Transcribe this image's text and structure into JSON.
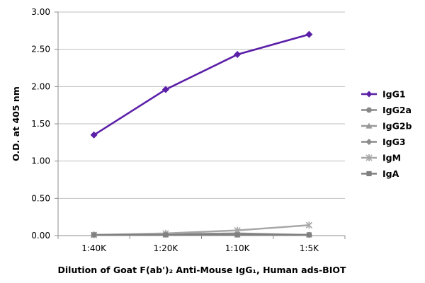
{
  "chart_data": {
    "type": "line",
    "title": "",
    "xlabel": "Dilution of Goat F(ab')₂ Anti-Mouse IgG₁, Human ads-BIOT",
    "ylabel": "O.D. at 405 nm",
    "categories": [
      "1:40K",
      "1:20K",
      "1:10K",
      "1:5K"
    ],
    "ylim": [
      0,
      3
    ],
    "yticks": [
      0,
      0.5,
      1,
      1.5,
      2,
      2.5,
      3
    ],
    "ytick_labels": [
      "0.00",
      "0.50",
      "1.00",
      "1.50",
      "2.00",
      "2.50",
      "3.00"
    ],
    "grid": "horizontal",
    "legend_position": "right",
    "series": [
      {
        "name": "IgG1",
        "values": [
          1.35,
          1.96,
          2.43,
          2.7
        ],
        "color": "#5b1fa8",
        "marker": "diamond"
      },
      {
        "name": "IgG2a",
        "values": [
          0.01,
          0.01,
          0.01,
          0.01
        ],
        "color": "#888888",
        "marker": "circle"
      },
      {
        "name": "IgG2b",
        "values": [
          0.01,
          0.01,
          0.01,
          0.01
        ],
        "color": "#999999",
        "marker": "triangle"
      },
      {
        "name": "IgG3",
        "values": [
          0.01,
          0.02,
          0.03,
          0.01
        ],
        "color": "#8c8c8c",
        "marker": "diamond"
      },
      {
        "name": "IgM",
        "values": [
          0.01,
          0.03,
          0.07,
          0.14
        ],
        "color": "#a6a6a6",
        "marker": "star"
      },
      {
        "name": "IgA",
        "values": [
          0.01,
          0.01,
          0.01,
          0.01
        ],
        "color": "#808080",
        "marker": "square"
      }
    ]
  }
}
